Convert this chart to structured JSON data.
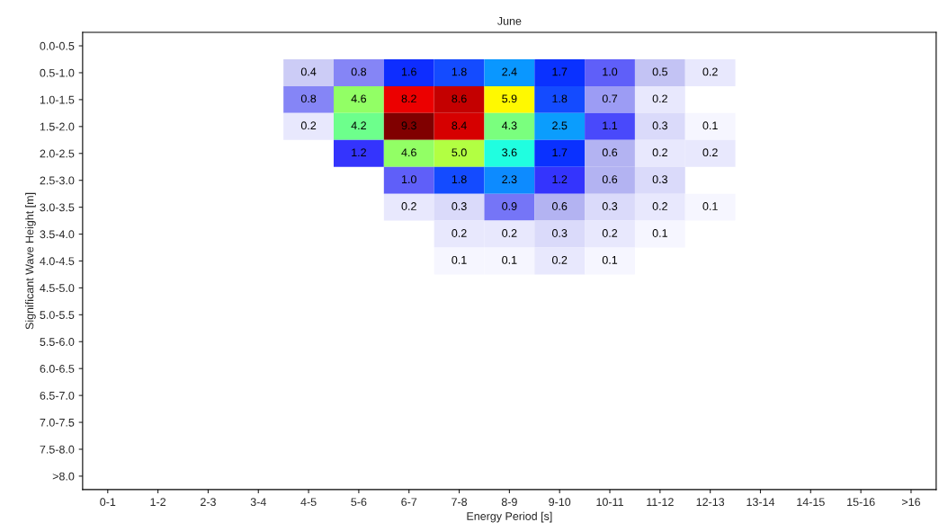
{
  "chart_data": {
    "type": "heatmap",
    "title": "June",
    "xlabel": "Energy Period [s]",
    "ylabel": "Significant Wave Height [m]",
    "categories": [
      "0-1",
      "1-2",
      "2-3",
      "3-4",
      "4-5",
      "5-6",
      "6-7",
      "7-8",
      "8-9",
      "9-10",
      "10-11",
      "11-12",
      "12-13",
      "13-14",
      "14-15",
      "15-16",
      ">16"
    ],
    "y_categories": [
      "0.0-0.5",
      "0.5-1.0",
      "1.0-1.5",
      "1.5-2.0",
      "2.0-2.5",
      "2.5-3.0",
      "3.0-3.5",
      "3.5-4.0",
      "4.0-4.5",
      "4.5-5.0",
      "5.0-5.5",
      "5.5-6.0",
      "6.0-6.5",
      "6.5-7.0",
      "7.0-7.5",
      "7.5-8.0",
      ">8.0"
    ],
    "cells": [
      [
        null,
        null,
        null,
        null,
        null,
        null,
        null,
        null,
        null,
        null,
        null,
        null,
        null,
        null,
        null,
        null,
        null
      ],
      [
        null,
        null,
        null,
        null,
        0.4,
        0.8,
        1.6,
        1.8,
        2.4,
        1.7,
        1.0,
        0.5,
        0.2,
        null,
        null,
        null,
        null
      ],
      [
        null,
        null,
        null,
        null,
        0.8,
        4.6,
        8.2,
        8.6,
        5.9,
        1.8,
        0.7,
        0.2,
        null,
        null,
        null,
        null,
        null
      ],
      [
        null,
        null,
        null,
        null,
        0.2,
        4.2,
        9.3,
        8.4,
        4.3,
        2.5,
        1.1,
        0.3,
        0.1,
        null,
        null,
        null,
        null
      ],
      [
        null,
        null,
        null,
        null,
        null,
        1.2,
        4.6,
        5.0,
        3.6,
        1.7,
        0.6,
        0.2,
        0.2,
        null,
        null,
        null,
        null
      ],
      [
        null,
        null,
        null,
        null,
        null,
        null,
        1.0,
        1.8,
        2.3,
        1.2,
        0.6,
        0.3,
        null,
        null,
        null,
        null,
        null
      ],
      [
        null,
        null,
        null,
        null,
        null,
        null,
        0.2,
        0.3,
        0.9,
        0.6,
        0.3,
        0.2,
        0.1,
        null,
        null,
        null,
        null
      ],
      [
        null,
        null,
        null,
        null,
        null,
        null,
        null,
        0.2,
        0.2,
        0.3,
        0.2,
        0.1,
        null,
        null,
        null,
        null,
        null
      ],
      [
        null,
        null,
        null,
        null,
        null,
        null,
        null,
        0.1,
        0.1,
        0.2,
        0.1,
        null,
        null,
        null,
        null,
        null,
        null
      ],
      [
        null,
        null,
        null,
        null,
        null,
        null,
        null,
        null,
        null,
        null,
        null,
        null,
        null,
        null,
        null,
        null,
        null
      ],
      [
        null,
        null,
        null,
        null,
        null,
        null,
        null,
        null,
        null,
        null,
        null,
        null,
        null,
        null,
        null,
        null,
        null
      ],
      [
        null,
        null,
        null,
        null,
        null,
        null,
        null,
        null,
        null,
        null,
        null,
        null,
        null,
        null,
        null,
        null,
        null
      ],
      [
        null,
        null,
        null,
        null,
        null,
        null,
        null,
        null,
        null,
        null,
        null,
        null,
        null,
        null,
        null,
        null,
        null
      ],
      [
        null,
        null,
        null,
        null,
        null,
        null,
        null,
        null,
        null,
        null,
        null,
        null,
        null,
        null,
        null,
        null,
        null
      ],
      [
        null,
        null,
        null,
        null,
        null,
        null,
        null,
        null,
        null,
        null,
        null,
        null,
        null,
        null,
        null,
        null,
        null
      ],
      [
        null,
        null,
        null,
        null,
        null,
        null,
        null,
        null,
        null,
        null,
        null,
        null,
        null,
        null,
        null,
        null,
        null
      ],
      [
        null,
        null,
        null,
        null,
        null,
        null,
        null,
        null,
        null,
        null,
        null,
        null,
        null,
        null,
        null,
        null,
        null
      ]
    ],
    "cell_labels": [
      [
        null,
        null,
        null,
        null,
        null,
        null,
        null,
        null,
        null,
        null,
        null,
        null,
        null,
        null,
        null,
        null,
        null
      ],
      [
        null,
        null,
        null,
        null,
        "0.4",
        "0.8",
        "1.6",
        "1.8",
        "2.4",
        "1.7",
        "1.0",
        "0.5",
        "0.2",
        null,
        null,
        null,
        null
      ],
      [
        null,
        null,
        null,
        null,
        "0.8",
        "4.6",
        "8.2",
        "8.6",
        "5.9",
        "1.8",
        "0.7",
        "0.2",
        null,
        null,
        null,
        null,
        null
      ],
      [
        null,
        null,
        null,
        null,
        "0.2",
        "4.2",
        "9.3",
        "8.4",
        "4.3",
        "2.5",
        "1.1",
        "0.3",
        "0.1",
        null,
        null,
        null,
        null
      ],
      [
        null,
        null,
        null,
        null,
        null,
        "1.2",
        "4.6",
        "5.0",
        "3.6",
        "1.7",
        "0.6",
        "0.2",
        "0.2",
        null,
        null,
        null,
        null
      ],
      [
        null,
        null,
        null,
        null,
        null,
        null,
        "1.0",
        "1.8",
        "2.3",
        "1.2",
        "0.6",
        "0.3",
        null,
        null,
        null,
        null,
        null
      ],
      [
        null,
        null,
        null,
        null,
        null,
        null,
        "0.2",
        "0.3",
        "0.9",
        "0.6",
        "0.3",
        "0.2",
        "0.1",
        null,
        null,
        null,
        null
      ],
      [
        null,
        null,
        null,
        null,
        null,
        null,
        null,
        "0.2",
        "0.2",
        "0.3",
        "0.2",
        "0.1",
        null,
        null,
        null,
        null,
        null
      ],
      [
        null,
        null,
        null,
        null,
        null,
        null,
        null,
        "0.1",
        "0.1",
        "0.2",
        "0.1",
        null,
        null,
        null,
        null,
        null,
        null
      ],
      [
        null,
        null,
        null,
        null,
        null,
        null,
        null,
        null,
        null,
        null,
        null,
        null,
        null,
        null,
        null,
        null,
        null
      ],
      [
        null,
        null,
        null,
        null,
        null,
        null,
        null,
        null,
        null,
        null,
        null,
        null,
        null,
        null,
        null,
        null,
        null
      ],
      [
        null,
        null,
        null,
        null,
        null,
        null,
        null,
        null,
        null,
        null,
        null,
        null,
        null,
        null,
        null,
        null,
        null
      ],
      [
        null,
        null,
        null,
        null,
        null,
        null,
        null,
        null,
        null,
        null,
        null,
        null,
        null,
        null,
        null,
        null,
        null
      ],
      [
        null,
        null,
        null,
        null,
        null,
        null,
        null,
        null,
        null,
        null,
        null,
        null,
        null,
        null,
        null,
        null,
        null
      ],
      [
        null,
        null,
        null,
        null,
        null,
        null,
        null,
        null,
        null,
        null,
        null,
        null,
        null,
        null,
        null,
        null,
        null
      ],
      [
        null,
        null,
        null,
        null,
        null,
        null,
        null,
        null,
        null,
        null,
        null,
        null,
        null,
        null,
        null,
        null,
        null
      ],
      [
        null,
        null,
        null,
        null,
        null,
        null,
        null,
        null,
        null,
        null,
        null,
        null,
        null,
        null,
        null,
        null,
        null
      ]
    ]
  }
}
